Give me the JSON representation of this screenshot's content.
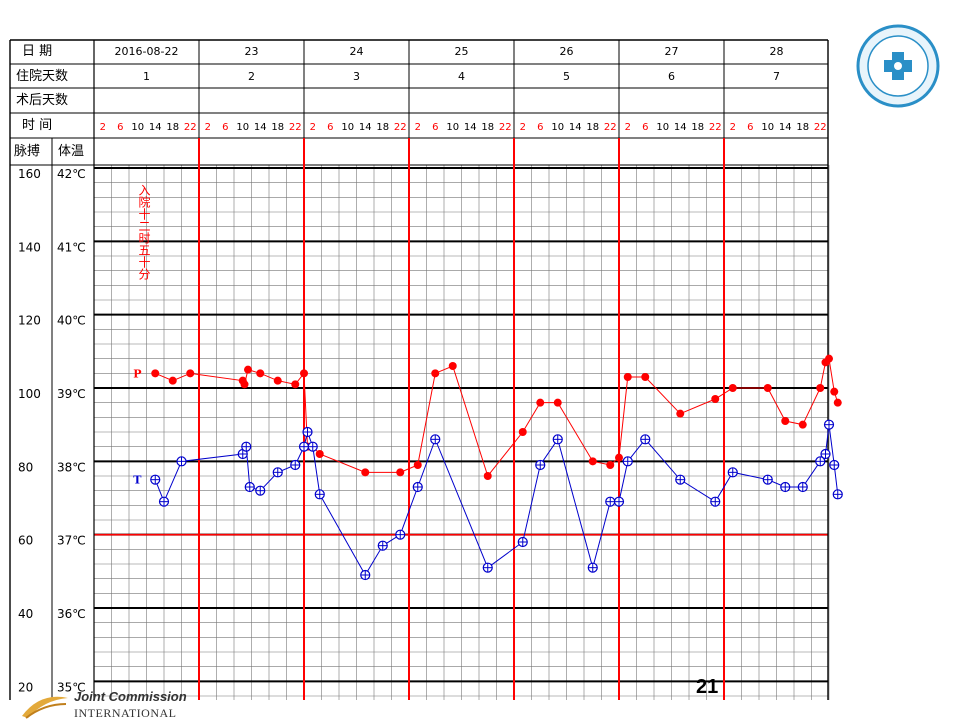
{
  "header": {
    "date_label": "日 期",
    "stay_label": "住院天数",
    "postop_label": "术后天数",
    "time_label": "时 间",
    "pulse_label": "脉搏",
    "temp_label": "体温"
  },
  "days": [
    {
      "date": "2016-08-22",
      "stay": "1"
    },
    {
      "date": "23",
      "stay": "2"
    },
    {
      "date": "24",
      "stay": "3"
    },
    {
      "date": "25",
      "stay": "4"
    },
    {
      "date": "26",
      "stay": "5"
    },
    {
      "date": "27",
      "stay": "6"
    },
    {
      "date": "28",
      "stay": "7"
    }
  ],
  "hours": [
    "2",
    "6",
    "10",
    "14",
    "18",
    "22"
  ],
  "note_vertical": "入院十二时五十分",
  "page_number": "21",
  "footer": {
    "line1": "Joint Commission",
    "line2": "INTERNATIONAL"
  },
  "colors": {
    "pulse": "#ff0000",
    "temperature": "#0000cc",
    "grid": "#000000",
    "day_divider": "#ff0000"
  },
  "chart_data": {
    "type": "line",
    "title": "",
    "x_unit": "6 four-hourly slots per day (02,06,10,14,18,22), days 2016-08-22 to 2016-08-28",
    "pulse_axis": {
      "ylim": [
        20,
        160
      ],
      "ticks": [
        "160",
        "140",
        "120",
        "100",
        "80",
        "60",
        "40",
        "20"
      ]
    },
    "temperature_axis": {
      "ylim": [
        35,
        42
      ],
      "ticks": [
        "42℃",
        "41℃",
        "40℃",
        "39℃",
        "38℃",
        "37℃",
        "36℃",
        "35℃"
      ]
    },
    "reference_line_temperature": 37,
    "series": [
      {
        "name": "P",
        "axis": "pulse",
        "marker": "filled-circle",
        "points": [
          [
            3.5,
            104
          ],
          [
            4.5,
            102
          ],
          [
            5.5,
            104
          ],
          [
            8.5,
            102
          ],
          [
            8.6,
            101
          ],
          [
            8.8,
            105
          ],
          [
            9.5,
            104
          ],
          [
            10.5,
            102
          ],
          [
            11.5,
            101
          ],
          [
            12.0,
            104
          ],
          [
            12.2,
            84
          ],
          [
            12.5,
            84
          ],
          [
            12.9,
            82
          ],
          [
            15.5,
            77
          ],
          [
            17.5,
            77
          ],
          [
            18.5,
            79
          ],
          [
            19.5,
            104
          ],
          [
            20.5,
            106
          ],
          [
            22.5,
            76
          ],
          [
            24.5,
            88
          ],
          [
            25.5,
            96
          ],
          [
            26.5,
            96
          ],
          [
            28.5,
            80
          ],
          [
            29.5,
            79
          ],
          [
            30.0,
            81
          ],
          [
            30.5,
            103
          ],
          [
            31.5,
            103
          ],
          [
            33.5,
            93
          ],
          [
            35.5,
            97
          ],
          [
            36.5,
            100
          ],
          [
            38.5,
            100
          ],
          [
            39.5,
            91
          ],
          [
            40.5,
            90
          ],
          [
            41.5,
            100
          ],
          [
            41.8,
            107
          ],
          [
            42.0,
            108
          ],
          [
            42.3,
            99
          ],
          [
            42.5,
            96
          ]
        ]
      },
      {
        "name": "T",
        "axis": "temperature",
        "marker": "crossed-circle",
        "points": [
          [
            3.5,
            37.75
          ],
          [
            4.0,
            37.45
          ],
          [
            5.0,
            38.0
          ],
          [
            8.5,
            38.1
          ],
          [
            8.7,
            38.2
          ],
          [
            8.9,
            37.65
          ],
          [
            9.5,
            37.6
          ],
          [
            10.5,
            37.85
          ],
          [
            11.5,
            37.95
          ],
          [
            12.0,
            38.2
          ],
          [
            12.2,
            38.4
          ],
          [
            12.5,
            38.2
          ],
          [
            12.9,
            37.55
          ],
          [
            15.5,
            36.45
          ],
          [
            16.5,
            36.85
          ],
          [
            17.5,
            37.0
          ],
          [
            18.5,
            37.65
          ],
          [
            19.5,
            38.3
          ],
          [
            22.5,
            36.55
          ],
          [
            24.5,
            36.9
          ],
          [
            25.5,
            37.95
          ],
          [
            26.5,
            38.3
          ],
          [
            28.5,
            36.55
          ],
          [
            29.5,
            37.45
          ],
          [
            30.0,
            37.45
          ],
          [
            30.5,
            38.0
          ],
          [
            31.5,
            38.3
          ],
          [
            33.5,
            37.75
          ],
          [
            35.5,
            37.45
          ],
          [
            36.5,
            37.85
          ],
          [
            38.5,
            37.75
          ],
          [
            39.5,
            37.65
          ],
          [
            40.5,
            37.65
          ],
          [
            41.5,
            38.0
          ],
          [
            41.8,
            38.1
          ],
          [
            42.0,
            38.5
          ],
          [
            42.3,
            37.95
          ],
          [
            42.5,
            37.55
          ]
        ]
      }
    ]
  }
}
